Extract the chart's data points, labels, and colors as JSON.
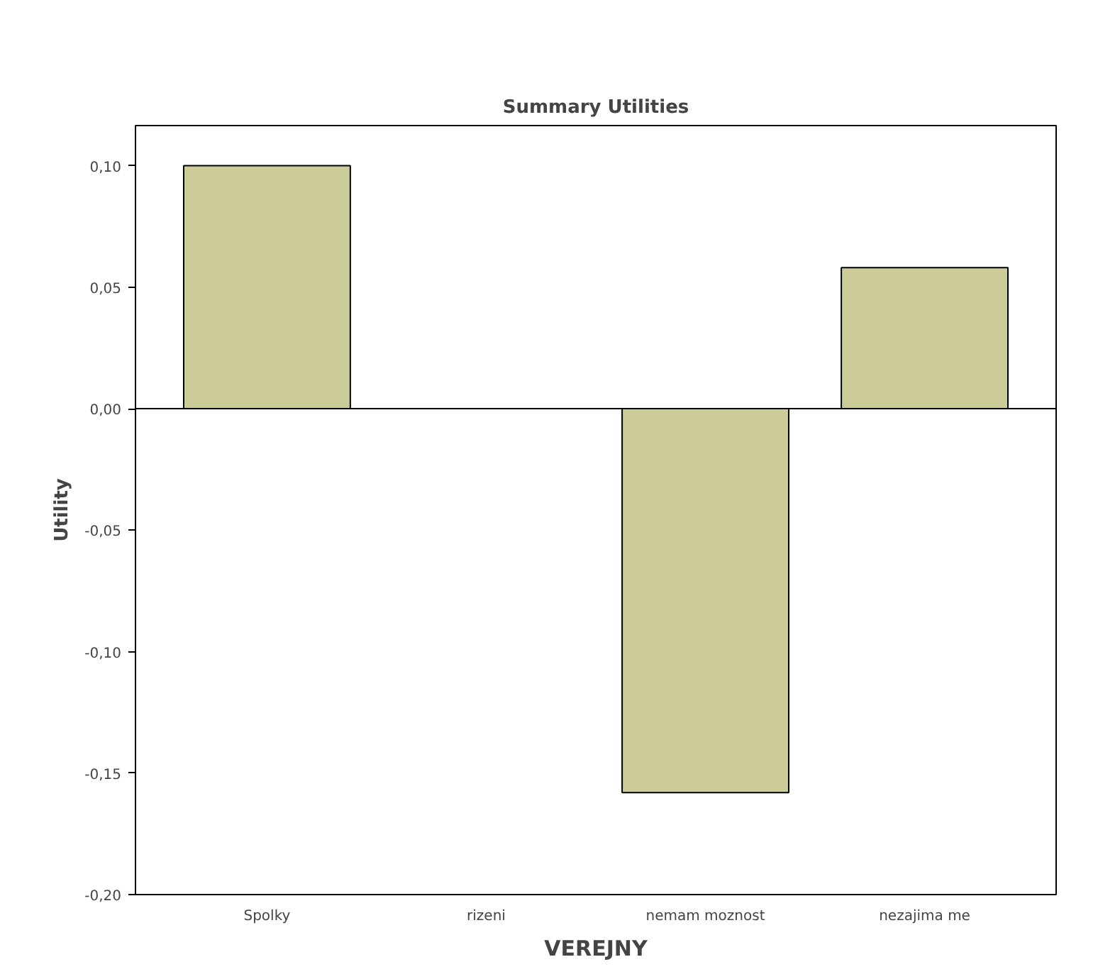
{
  "chart_data": {
    "type": "bar",
    "title": "Summary Utilities",
    "xlabel": "VEREJNY",
    "ylabel": "Utility",
    "categories": [
      "Spolky",
      "rizeni",
      "nemam moznost",
      "nezajima me"
    ],
    "values": [
      0.1,
      0.0,
      -0.158,
      0.058
    ],
    "color": "#cccc99",
    "ylim": [
      -0.2,
      0.1165
    ],
    "yticks": [
      {
        "value": -0.2,
        "label": "-0,20"
      },
      {
        "value": -0.15,
        "label": "-0,15"
      },
      {
        "value": -0.1,
        "label": "-0,10"
      },
      {
        "value": -0.05,
        "label": "-0,05"
      },
      {
        "value": 0,
        "label": "0,00"
      },
      {
        "value": 0.05,
        "label": "0,05"
      },
      {
        "value": 0.1,
        "label": "0,10"
      }
    ],
    "ref_lines": [
      {
        "axis": "y",
        "value": 0,
        "color": "#000000"
      }
    ],
    "grid": false
  }
}
